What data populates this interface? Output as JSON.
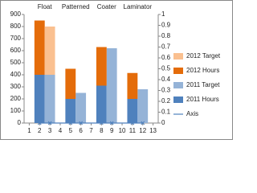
{
  "chart_data": {
    "type": "bar",
    "x": [
      2,
      3,
      5,
      6,
      8,
      9,
      11,
      12
    ],
    "xlim": [
      0.5,
      13.5
    ],
    "xticks": [
      1,
      2,
      3,
      4,
      5,
      6,
      7,
      8,
      9,
      10,
      11,
      12,
      13
    ],
    "ylim": [
      0,
      900
    ],
    "yticks": [
      0,
      100,
      200,
      300,
      400,
      500,
      600,
      700,
      800,
      900
    ],
    "y2lim": [
      0,
      1
    ],
    "y2ticks": [
      0,
      0.1,
      0.2,
      0.3,
      0.4,
      0.5,
      0.6,
      0.7,
      0.8,
      0.9,
      1
    ],
    "stacked": true,
    "grid": false,
    "legend": "right",
    "series": [
      {
        "name": "2012 Target",
        "color": "#fac090",
        "values": [
          null,
          400,
          null,
          null,
          null,
          null,
          null,
          null
        ]
      },
      {
        "name": "2012 Hours",
        "color": "#e46c0a",
        "values": [
          450,
          null,
          250,
          null,
          320,
          null,
          215,
          null
        ]
      },
      {
        "name": "2011 Target",
        "color": "#95b3d7",
        "values": [
          null,
          400,
          null,
          250,
          null,
          620,
          null,
          280
        ]
      },
      {
        "name": "2011 Hours",
        "color": "#4f81bd",
        "values": [
          400,
          null,
          200,
          null,
          310,
          null,
          200,
          null
        ]
      },
      {
        "name": "Axis",
        "type": "line",
        "axis": "y2",
        "color": "#4f81bd",
        "values": [
          0,
          0,
          0,
          0,
          0,
          0,
          0,
          0
        ]
      }
    ],
    "annotations": [
      {
        "text": "Float",
        "x": 2.5
      },
      {
        "text": "Patterned",
        "x": 5.5
      },
      {
        "text": "Coater",
        "x": 8.5
      },
      {
        "text": "Laminator",
        "x": 11.5
      }
    ]
  }
}
